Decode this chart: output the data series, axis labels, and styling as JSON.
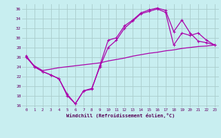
{
  "xlabel": "Windchill (Refroidissement éolien,°C)",
  "bg_color": "#c8eef0",
  "line_color": "#aa00aa",
  "grid_color": "#aacccc",
  "xlim": [
    -0.5,
    23.5
  ],
  "ylim": [
    15.5,
    37
  ],
  "yticks": [
    16,
    18,
    20,
    22,
    24,
    26,
    28,
    30,
    32,
    34,
    36
  ],
  "xticks": [
    0,
    1,
    2,
    3,
    4,
    5,
    6,
    7,
    8,
    9,
    10,
    11,
    12,
    13,
    14,
    15,
    16,
    17,
    18,
    19,
    20,
    21,
    22,
    23
  ],
  "line1_x": [
    0,
    1,
    2,
    3,
    4,
    5,
    6,
    7,
    8,
    9,
    10,
    11,
    12,
    13,
    14,
    15,
    16,
    17,
    18,
    19,
    20,
    21,
    22,
    23
  ],
  "line1_y": [
    26.3,
    24.0,
    23.0,
    22.3,
    21.5,
    18.0,
    16.3,
    19.0,
    19.3,
    24.3,
    29.5,
    30.0,
    32.5,
    33.7,
    35.2,
    35.8,
    36.2,
    35.7,
    31.3,
    33.7,
    31.0,
    29.3,
    29.0,
    28.5
  ],
  "line2_x": [
    0,
    1,
    2,
    3,
    4,
    5,
    6,
    7,
    8,
    9,
    10,
    11,
    12,
    13,
    14,
    15,
    16,
    17,
    18,
    19,
    20,
    21,
    22,
    23
  ],
  "line2_y": [
    26.0,
    24.0,
    23.0,
    22.3,
    21.5,
    18.3,
    16.3,
    19.0,
    19.5,
    24.0,
    28.0,
    29.5,
    32.0,
    33.5,
    35.0,
    35.5,
    36.0,
    35.3,
    28.5,
    31.0,
    30.5,
    31.0,
    29.5,
    28.5
  ],
  "line3_x": [
    0,
    1,
    2,
    3,
    4,
    5,
    6,
    7,
    8,
    9,
    10,
    11,
    12,
    13,
    14,
    15,
    16,
    17,
    18,
    19,
    20,
    21,
    22,
    23
  ],
  "line3_y": [
    26.0,
    24.2,
    23.2,
    23.5,
    23.8,
    24.0,
    24.2,
    24.4,
    24.6,
    24.8,
    25.2,
    25.5,
    25.8,
    26.2,
    26.5,
    26.8,
    27.0,
    27.3,
    27.5,
    27.8,
    28.0,
    28.2,
    28.3,
    28.5
  ]
}
